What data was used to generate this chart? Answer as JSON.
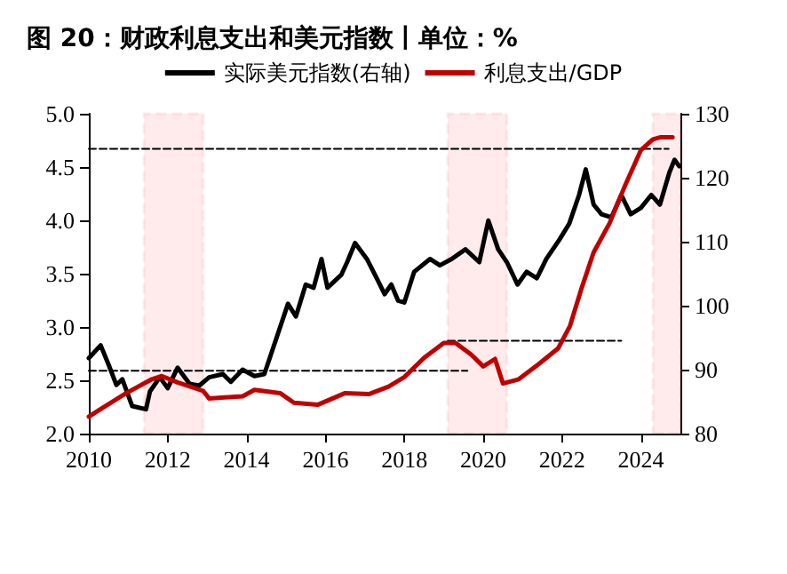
{
  "chart_data": {
    "type": "line",
    "title": "图 20：财政利息支出和美元指数丨单位：%",
    "legend": "top",
    "grid": false,
    "line_style": "solid",
    "marker": "none",
    "xlim": [
      2010,
      2025
    ],
    "xticks": [
      2010,
      2012,
      2014,
      2016,
      2018,
      2020,
      2022,
      2024
    ],
    "ylim": [
      2,
      5
    ],
    "yticks": [
      {
        "value": 2,
        "label": "2.0"
      },
      2.5,
      {
        "value": 3,
        "label": "3.0"
      },
      3.5,
      {
        "value": 4,
        "label": "4.0"
      },
      4.5,
      {
        "value": 5,
        "label": "5.0"
      }
    ],
    "y2lim": [
      80,
      130
    ],
    "y2ticks": [
      80,
      90,
      100,
      110,
      120,
      130
    ],
    "series": [
      {
        "name": "实际美元指数(右轴)",
        "color": "#000000",
        "axis": "y2",
        "x": [
          2010.0,
          2010.3,
          2010.5,
          2010.7,
          2010.85,
          2011.1,
          2011.45,
          2011.55,
          2011.8,
          2012.0,
          2012.25,
          2012.55,
          2012.8,
          2013.05,
          2013.4,
          2013.6,
          2013.9,
          2014.2,
          2014.45,
          2014.75,
          2015.05,
          2015.25,
          2015.5,
          2015.7,
          2015.9,
          2016.05,
          2016.4,
          2016.55,
          2016.75,
          2017.05,
          2017.3,
          2017.5,
          2017.67,
          2017.84,
          2018.0,
          2018.25,
          2018.65,
          2018.9,
          2019.2,
          2019.55,
          2019.9,
          2020.13,
          2020.38,
          2020.6,
          2020.87,
          2021.1,
          2021.36,
          2021.6,
          2021.93,
          2022.18,
          2022.43,
          2022.6,
          2022.8,
          2023.0,
          2023.25,
          2023.5,
          2023.74,
          2024.0,
          2024.26,
          2024.48,
          2024.72,
          2024.85,
          2024.97
        ],
        "values": [
          91.8,
          93.8,
          90.8,
          87.6,
          88.5,
          84.3,
          83.8,
          86.6,
          88.8,
          87.1,
          90.3,
          87.8,
          87.5,
          88.8,
          89.3,
          88.1,
          90.0,
          89.0,
          89.3,
          94.8,
          100.3,
          98.3,
          103.3,
          102.8,
          107.3,
          102.8,
          104.8,
          106.8,
          109.8,
          107.3,
          104.3,
          101.8,
          103.3,
          100.8,
          100.5,
          105.3,
          107.3,
          106.3,
          107.3,
          108.8,
          106.8,
          113.3,
          108.8,
          106.8,
          103.3,
          105.3,
          104.3,
          107.3,
          110.3,
          112.8,
          117.3,
          121.3,
          115.8,
          114.3,
          113.8,
          117.3,
          114.3,
          115.3,
          117.3,
          115.8,
          120.8,
          122.8,
          121.8
        ]
      },
      {
        "name": "利息支出/GDP",
        "color": "#c00000",
        "x": [
          2010.0,
          2010.3,
          2010.95,
          2011.6,
          2011.85,
          2012.25,
          2012.9,
          2013.05,
          2013.9,
          2014.2,
          2014.85,
          2015.2,
          2015.8,
          2016.5,
          2017.1,
          2017.6,
          2018.0,
          2018.5,
          2019.0,
          2019.3,
          2019.7,
          2020.0,
          2020.3,
          2020.5,
          2020.9,
          2021.4,
          2021.9,
          2022.2,
          2022.5,
          2022.8,
          2023.2,
          2023.6,
          2024.0,
          2024.3,
          2024.5,
          2024.8
        ],
        "values": [
          2.16,
          2.23,
          2.38,
          2.51,
          2.54,
          2.48,
          2.4,
          2.33,
          2.35,
          2.41,
          2.38,
          2.29,
          2.27,
          2.38,
          2.37,
          2.44,
          2.53,
          2.71,
          2.85,
          2.85,
          2.74,
          2.63,
          2.7,
          2.47,
          2.51,
          2.65,
          2.8,
          3.01,
          3.37,
          3.7,
          3.97,
          4.33,
          4.66,
          4.76,
          4.78,
          4.78
        ]
      },
      {
        "color": "#000000",
        "line_style": "dashed",
        "x": [
          2010,
          2024.7
        ],
        "values": [
          4.67,
          4.67
        ]
      },
      {
        "color": "#000000",
        "line_style": "dashed",
        "x": [
          2010,
          2019.6
        ],
        "values": [
          2.59,
          2.59
        ]
      },
      {
        "color": "#000000",
        "line_style": "dashed",
        "x": [
          2019.1,
          2023.5
        ],
        "values": [
          2.87,
          2.87
        ]
      }
    ],
    "bands": [
      {
        "axis": "x",
        "from": 2011.4,
        "to": 2012.9,
        "color": "#ff0000"
      },
      {
        "axis": "x",
        "from": 2019.1,
        "to": 2020.6,
        "color": "#ff0000"
      },
      {
        "axis": "x",
        "from": 2024.3,
        "to": 2025.0,
        "color": "#ff0000"
      }
    ]
  }
}
